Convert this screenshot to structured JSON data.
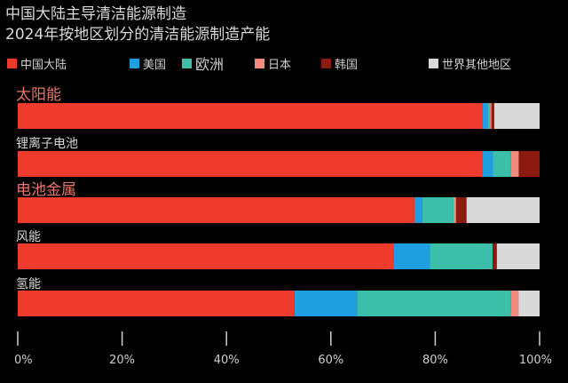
{
  "titles": {
    "line1": "中国大陆主导清洁能源制造",
    "line2": "2024年按地区划分的清洁能源制造产能"
  },
  "chart_data": {
    "type": "bar",
    "orientation": "horizontal",
    "stacked": true,
    "xlim": [
      0,
      100
    ],
    "xticks": [
      "0%",
      "20%",
      "40%",
      "60%",
      "80%",
      "100%"
    ],
    "categories": [
      "太阳能",
      "锂离子电池",
      "电池金属",
      "风能",
      "氢能"
    ],
    "highlight_categories": [
      "太阳能",
      "电池金属"
    ],
    "series": [
      {
        "name": "中国大陆",
        "color": "#ef3b2c",
        "values": [
          89,
          89,
          76,
          72,
          53
        ]
      },
      {
        "name": "美国",
        "color": "#1f9fe0",
        "values": [
          1,
          2,
          1.5,
          7,
          12
        ]
      },
      {
        "name": "欧洲",
        "color": "#3bbfa8",
        "values": [
          0.5,
          3.5,
          6,
          12,
          29.5
        ]
      },
      {
        "name": "日本",
        "color": "#f08b80",
        "values": [
          0.3,
          1.5,
          0.5,
          0,
          1.5
        ]
      },
      {
        "name": "韩国",
        "color": "#8b1a10",
        "values": [
          0.5,
          4,
          2,
          0.8,
          0
        ]
      },
      {
        "name": "世界其他地区",
        "color": "#d9d9d9",
        "values": [
          8.7,
          0,
          14,
          8.2,
          4
        ]
      }
    ],
    "legend_position": "top",
    "grid": false
  }
}
